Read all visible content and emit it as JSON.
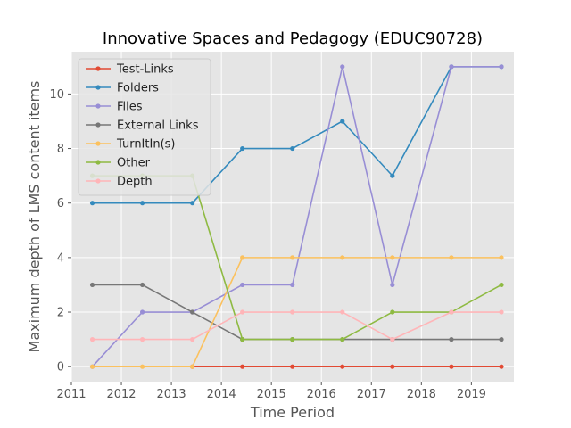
{
  "chart_data": {
    "type": "line",
    "title": "Innovative Spaces and Pedagogy (EDUC90728)",
    "xlabel": "Time Period",
    "ylabel": "Maximum depth of LMS content items",
    "xlim": [
      2011.0,
      2019.85
    ],
    "ylim": [
      -0.55,
      11.55
    ],
    "xticks": [
      2011,
      2012,
      2013,
      2014,
      2015,
      2016,
      2017,
      2018,
      2019
    ],
    "yticks": [
      0,
      2,
      4,
      6,
      8,
      10
    ],
    "grid": true,
    "legend_position": "upper-left",
    "style": "ggplot",
    "series": [
      {
        "name": "Test-Links",
        "color": "#E24A33",
        "x": [
          2013.42,
          2014.42,
          2015.42,
          2016.42,
          2017.42,
          2018.6,
          2019.6
        ],
        "y": [
          0,
          0,
          0,
          0,
          0,
          0,
          0
        ]
      },
      {
        "name": "Folders",
        "color": "#348ABD",
        "x": [
          2011.42,
          2012.42,
          2013.42,
          2014.42,
          2015.42,
          2016.42,
          2017.42,
          2018.6,
          2019.6
        ],
        "y": [
          6,
          6,
          6,
          8,
          8,
          9,
          7,
          11,
          11
        ]
      },
      {
        "name": "Files",
        "color": "#988ED5",
        "x": [
          2011.42,
          2012.42,
          2013.42,
          2014.42,
          2015.42,
          2016.42,
          2017.42,
          2018.6,
          2019.6
        ],
        "y": [
          0,
          2,
          2,
          3,
          3,
          11,
          3,
          11,
          11
        ]
      },
      {
        "name": "External Links",
        "color": "#777777",
        "x": [
          2011.42,
          2012.42,
          2013.42,
          2014.42,
          2015.42,
          2016.42,
          2017.42,
          2018.6,
          2019.6
        ],
        "y": [
          3,
          3,
          2,
          1,
          1,
          1,
          1,
          1,
          1
        ]
      },
      {
        "name": "TurnItIn(s)",
        "color": "#FBC15E",
        "x": [
          2011.42,
          2012.42,
          2013.42,
          2014.42,
          2015.42,
          2016.42,
          2017.42,
          2018.6,
          2019.6
        ],
        "y": [
          0,
          0,
          0,
          4,
          4,
          4,
          4,
          4,
          4
        ]
      },
      {
        "name": "Other",
        "color": "#8EBA42",
        "x": [
          2011.42,
          2012.42,
          2013.42,
          2014.42,
          2015.42,
          2016.42,
          2017.42,
          2018.6,
          2019.6
        ],
        "y": [
          7,
          7,
          7,
          1,
          1,
          1,
          2,
          2,
          3
        ]
      },
      {
        "name": "Depth",
        "color": "#FFB5B8",
        "x": [
          2011.42,
          2012.42,
          2013.42,
          2014.42,
          2015.42,
          2016.42,
          2017.42,
          2018.6,
          2019.6
        ],
        "y": [
          1,
          1,
          1,
          2,
          2,
          2,
          1,
          2,
          2
        ]
      }
    ]
  }
}
